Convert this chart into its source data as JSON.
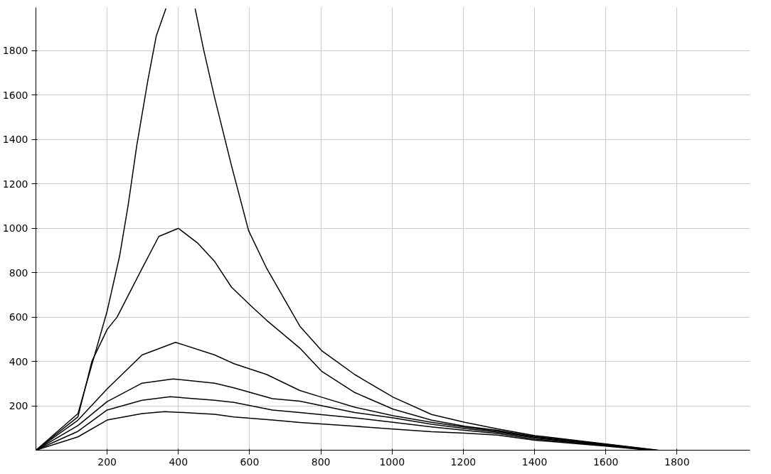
{
  "chart_data": {
    "type": "line",
    "xlim": [
      0,
      2005
    ],
    "ylim": [
      0,
      1995
    ],
    "xticks": [
      200,
      400,
      600,
      800,
      1000,
      1200,
      1400,
      1600,
      1800
    ],
    "yticks": [
      200,
      400,
      600,
      800,
      1000,
      1200,
      1400,
      1600,
      1800
    ],
    "grid": true,
    "line_style": "solid",
    "marker": "none",
    "series": [
      {
        "color": "#000000",
        "x": [
          0,
          118,
          200,
          235,
          259,
          283,
          314,
          338,
          365,
          400,
          447,
          471,
          502,
          549,
          597,
          648,
          741,
          802,
          895,
          1003,
          1111,
          1204,
          1296,
          1401,
          1605,
          1748
        ],
        "values": [
          0,
          165,
          627,
          875,
          1104,
          1371,
          1664,
          1867,
          1990,
          null,
          1990,
          1804,
          1587,
          1283,
          990,
          819,
          559,
          449,
          341,
          239,
          161,
          126,
          96,
          66,
          27,
          0
        ]
      },
      {
        "color": "#000000",
        "x": [
          0,
          118,
          157,
          200,
          228,
          292,
          345,
          400,
          455,
          502,
          549,
          604,
          648,
          741,
          802,
          895,
          1003,
          1111,
          1204,
          1296,
          1401,
          1605,
          1741
        ],
        "values": [
          0,
          150,
          400,
          544,
          600,
          800,
          963,
          1000,
          932,
          850,
          735,
          650,
          585,
          460,
          356,
          260,
          185,
          135,
          108,
          90,
          62,
          26,
          0
        ]
      },
      {
        "color": "#000000",
        "x": [
          0,
          118,
          200,
          298,
          392,
          502,
          556,
          648,
          741,
          802,
          895,
          1003,
          1111,
          1204,
          1296,
          1401,
          1605,
          1738
        ],
        "values": [
          0,
          135,
          276,
          429,
          486,
          429,
          390,
          341,
          269,
          239,
          194,
          155,
          126,
          104,
          86,
          58,
          24,
          0
        ]
      },
      {
        "color": "#000000",
        "x": [
          0,
          118,
          200,
          298,
          385,
          502,
          556,
          664,
          741,
          895,
          1003,
          1111,
          1204,
          1296,
          1401,
          1605,
          1733
        ],
        "values": [
          0,
          111,
          219,
          302,
          321,
          302,
          281,
          232,
          221,
          170,
          146,
          117,
          98,
          81,
          55,
          22,
          0
        ]
      },
      {
        "color": "#000000",
        "x": [
          0,
          118,
          200,
          298,
          377,
          502,
          556,
          664,
          741,
          895,
          1003,
          1111,
          1204,
          1296,
          1401,
          1605,
          1728
        ],
        "values": [
          0,
          85,
          181,
          225,
          241,
          225,
          215,
          181,
          170,
          146,
          126,
          105,
          90,
          75,
          50,
          20,
          0
        ]
      },
      {
        "color": "#000000",
        "x": [
          0,
          118,
          200,
          298,
          361,
          502,
          556,
          664,
          741,
          895,
          1003,
          1111,
          1204,
          1296,
          1401,
          1605,
          1723
        ],
        "values": [
          0,
          60,
          136,
          165,
          174,
          162,
          150,
          136,
          125,
          108,
          95,
          83,
          77,
          68,
          45,
          18,
          0
        ]
      }
    ]
  }
}
